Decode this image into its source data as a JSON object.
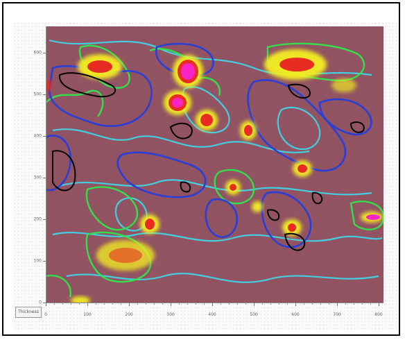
{
  "map": {
    "corner_button_label": "Thickness",
    "y_ticks": [
      "0",
      "100",
      "200",
      "300",
      "400",
      "500",
      "600"
    ],
    "x_ticks": [
      "0",
      "100",
      "200",
      "300",
      "400",
      "500",
      "600",
      "700",
      "800"
    ],
    "colors": {
      "background": "#8c4a5a",
      "contour_cyan": "#3fd6e6",
      "contour_blue": "#2a3fd8",
      "contour_green": "#33e04a",
      "contour_yellow": "#f4ee22",
      "contour_red": "#ee2a1e",
      "contour_magenta": "#ff22cc",
      "contour_black": "#000000"
    }
  }
}
